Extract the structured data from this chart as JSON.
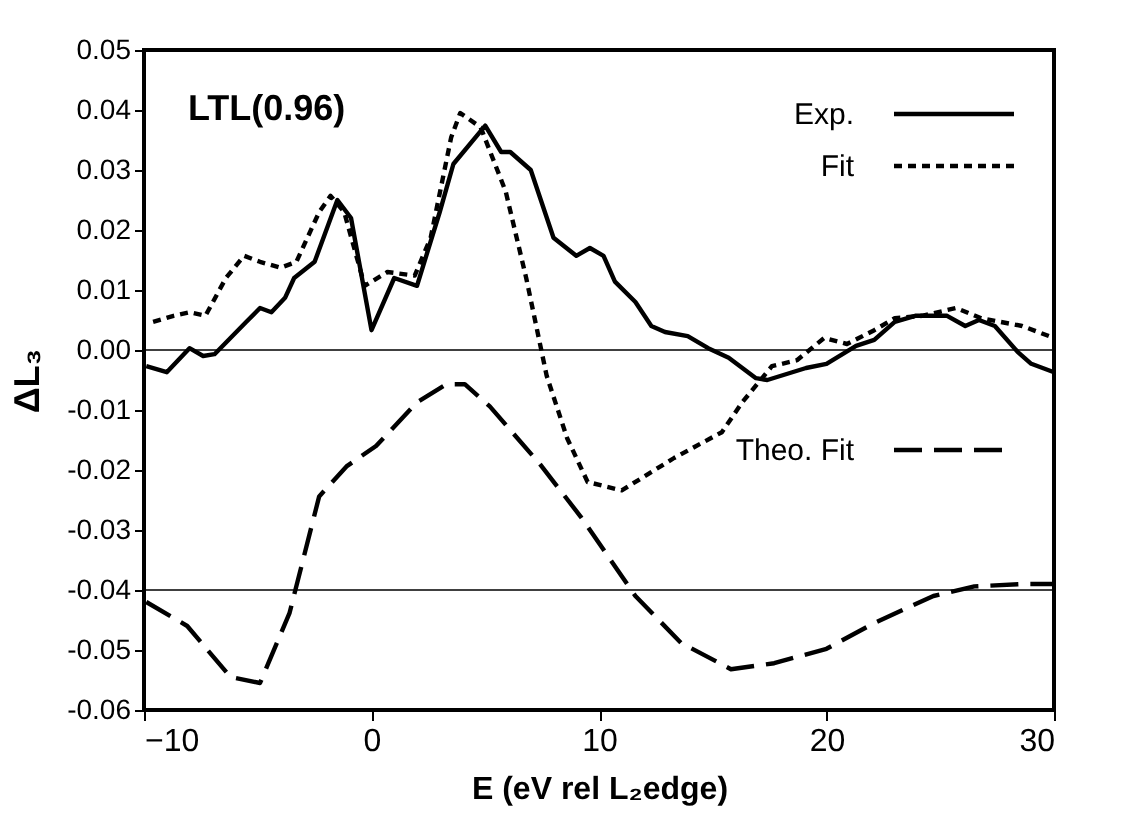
{
  "chart_data": {
    "type": "line",
    "xlabel": "E (eV rel L₂edge)",
    "ylabel": "ΔL₃",
    "xlim": [
      -10,
      30
    ],
    "ylim": [
      -0.06,
      0.05
    ],
    "xticks": [
      -10,
      0,
      10,
      20,
      30
    ],
    "yticks": [
      {
        "value": -0.06,
        "label": "-0.06"
      },
      {
        "value": -0.05,
        "label": "-0.05"
      },
      {
        "value": -0.04,
        "label": "-0.04"
      },
      {
        "value": -0.03,
        "label": "-0.03"
      },
      {
        "value": -0.02,
        "label": "-0.02"
      },
      {
        "value": -0.01,
        "label": "-0.01"
      },
      {
        "value": 0,
        "label": "0.00"
      },
      {
        "value": 0.01,
        "label": "0.01"
      },
      {
        "value": 0.02,
        "label": "0.02"
      },
      {
        "value": 0.03,
        "label": "0.03"
      },
      {
        "value": 0.04,
        "label": "0.04"
      },
      {
        "value": 0.05,
        "label": "0.05"
      }
    ],
    "grid": false,
    "legend": "top right",
    "marker": "none",
    "annotations": [
      "LTL(0.96)"
    ],
    "ref_lines": [
      {
        "axis": "y",
        "value": 0,
        "color": "#000000"
      },
      {
        "axis": "y",
        "value": -0.04,
        "color": "#000000"
      }
    ],
    "series": [
      {
        "name": "Exp.",
        "color": "#000000",
        "line_style": "solid",
        "x": [
          -9.9,
          -9.0,
          -8.0,
          -7.4,
          -6.9,
          -6.2,
          -5.5,
          -4.9,
          -4.4,
          -3.8,
          -3.4,
          -2.5,
          -1.5,
          -0.9,
          0.0,
          1.0,
          2.0,
          3.0,
          3.6,
          5.0,
          5.7,
          6.1,
          7.0,
          8.0,
          9.0,
          9.6,
          10.2,
          10.7,
          11.6,
          12.3,
          12.9,
          13.9,
          14.8,
          15.7,
          16.9,
          17.4,
          19.1,
          20.0,
          21.3,
          22.1,
          23.0,
          23.9,
          25.3,
          26.1,
          26.7,
          27.4,
          28.4,
          29.0,
          30.0
        ],
        "values": [
          -0.0027,
          -0.0037,
          0.0003,
          -0.001,
          -0.0007,
          0.002,
          0.0047,
          0.007,
          0.0063,
          0.0087,
          0.012,
          0.0147,
          0.025,
          0.022,
          0.0033,
          0.012,
          0.0107,
          0.023,
          0.031,
          0.0374,
          0.033,
          0.033,
          0.03,
          0.0187,
          0.0157,
          0.017,
          0.0157,
          0.0114,
          0.008,
          0.004,
          0.003,
          0.0023,
          0.0003,
          -0.0013,
          -0.0047,
          -0.005,
          -0.003,
          -0.0023,
          0.0007,
          0.0017,
          0.0047,
          0.0057,
          0.0057,
          0.004,
          0.005,
          0.004,
          -0.0003,
          -0.0023,
          -0.0037
        ]
      },
      {
        "name": "Fit",
        "color": "#000000",
        "line_style": "dotted",
        "x": [
          -9.6,
          -8.7,
          -8.0,
          -7.3,
          -6.4,
          -5.6,
          -4.9,
          -4.0,
          -3.3,
          -2.3,
          -1.8,
          -1.2,
          -0.3,
          0.7,
          1.9,
          2.6,
          3.5,
          3.9,
          4.8,
          5.9,
          6.8,
          7.7,
          8.6,
          9.5,
          11.0,
          13.3,
          15.4,
          16.3,
          17.6,
          18.7,
          19.9,
          20.9,
          22.1,
          23.0,
          24.2,
          25.7,
          26.8,
          28.6,
          30.0
        ],
        "values": [
          0.0047,
          0.0057,
          0.0063,
          0.0057,
          0.012,
          0.0157,
          0.0147,
          0.0137,
          0.0147,
          0.023,
          0.0257,
          0.023,
          0.0107,
          0.013,
          0.0124,
          0.0187,
          0.0354,
          0.0395,
          0.0371,
          0.0264,
          0.012,
          -0.0043,
          -0.0147,
          -0.022,
          -0.0234,
          -0.018,
          -0.0137,
          -0.0087,
          -0.0027,
          -0.0017,
          0.002,
          0.001,
          0.0033,
          0.0053,
          0.0057,
          0.007,
          0.0053,
          0.004,
          0.002
        ]
      },
      {
        "name": "Theo. Fit",
        "color": "#000000",
        "line_style": "dashed",
        "x": [
          -9.9,
          -8.1,
          -6.2,
          -4.9,
          -3.6,
          -2.3,
          -1.1,
          0.2,
          2.0,
          3.3,
          4.1,
          5.2,
          7.4,
          9.2,
          11.6,
          13.6,
          15.8,
          17.7,
          20.0,
          22.1,
          24.7,
          26.5,
          28.6,
          30.0
        ],
        "values": [
          -0.042,
          -0.046,
          -0.0545,
          -0.0555,
          -0.0438,
          -0.0244,
          -0.0194,
          -0.016,
          -0.0087,
          -0.0057,
          -0.0057,
          -0.0094,
          -0.019,
          -0.0278,
          -0.041,
          -0.0488,
          -0.0532,
          -0.0522,
          -0.0498,
          -0.0455,
          -0.041,
          -0.0394,
          -0.039,
          -0.039
        ]
      }
    ]
  }
}
